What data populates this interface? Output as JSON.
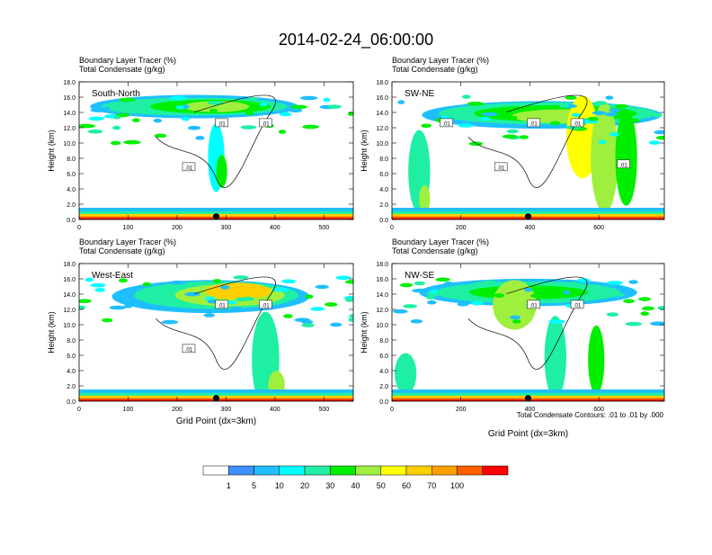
{
  "figure": {
    "title": "2014-02-24_06:00:00",
    "contour_note": "Total Condensate Contours: .01 to .01 by .000"
  },
  "colorbar": {
    "labels": [
      "1",
      "5",
      "10",
      "20",
      "30",
      "40",
      "50",
      "60",
      "70",
      "100"
    ],
    "colors": [
      "#ffffff",
      "#3f8fff",
      "#1fbfff",
      "#00ffff",
      "#1fefa3",
      "#00ef00",
      "#9fef3f",
      "#ffff00",
      "#ffcf00",
      "#ff9f00",
      "#ff5f00",
      "#ff0000"
    ]
  },
  "chart_data": [
    {
      "type": "heatmap",
      "panel": "South-North",
      "subtitle_1": "Boundary Layer Tracer   (%)",
      "subtitle_2": "Total Condensate   (g/kg)",
      "ylabel": "Height (km)",
      "xlabel": "",
      "xlim": [
        0,
        560
      ],
      "ylim": [
        0,
        18
      ],
      "xticks": [
        0,
        100,
        200,
        300,
        400,
        500
      ],
      "yticks": [
        "0.0",
        "2.0",
        "4.0",
        "6.0",
        "8.0",
        "10.0",
        "12.0",
        "14.0",
        "16.0",
        "18.0"
      ],
      "contour_labels": [
        ".01",
        ".01",
        ".01"
      ],
      "marker_x": 280
    },
    {
      "type": "heatmap",
      "panel": "SW-NE",
      "subtitle_1": "Boundary Layer Tracer   (%)",
      "subtitle_2": "Total Condensate   (g/kg)",
      "ylabel": "Height (km)",
      "xlabel": "",
      "xlim": [
        0,
        790
      ],
      "ylim": [
        0,
        18
      ],
      "xticks": [
        0,
        200,
        400,
        600
      ],
      "yticks": [
        "0.0",
        "2.0",
        "4.0",
        "6.0",
        "8.0",
        "10.0",
        "12.0",
        "14.0",
        "16.0",
        "18.0"
      ],
      "contour_labels": [
        ".01",
        ".01",
        ".01",
        ".01",
        ".01"
      ],
      "marker_x": 395
    },
    {
      "type": "heatmap",
      "panel": "West-East",
      "subtitle_1": "Boundary Layer Tracer   (%)",
      "subtitle_2": "Total Condensate   (g/kg)",
      "ylabel": "Height (km)",
      "xlabel": "Grid Point (dx=3km)",
      "xlim": [
        0,
        560
      ],
      "ylim": [
        0,
        18
      ],
      "xticks": [
        0,
        100,
        200,
        300,
        400,
        500
      ],
      "yticks": [
        "0.0",
        "2.0",
        "4.0",
        "6.0",
        "8.0",
        "10.0",
        "12.0",
        "14.0",
        "16.0",
        "18.0"
      ],
      "contour_labels": [
        ".01",
        ".01",
        ".01"
      ],
      "marker_x": 280
    },
    {
      "type": "heatmap",
      "panel": "NW-SE",
      "subtitle_1": "Boundary Layer Tracer   (%)",
      "subtitle_2": "Total Condensate   (g/kg)",
      "ylabel": "Height (km)",
      "xlabel": "Grid Point (dx=3km)",
      "xlim": [
        0,
        790
      ],
      "ylim": [
        0,
        18
      ],
      "xticks": [
        0,
        200,
        400,
        600
      ],
      "yticks": [
        "0.0",
        "2.0",
        "4.0",
        "6.0",
        "8.0",
        "10.0",
        "12.0",
        "14.0",
        "16.0",
        "18.0"
      ],
      "contour_labels": [
        ".01",
        ".01"
      ],
      "marker_x": 395
    }
  ]
}
